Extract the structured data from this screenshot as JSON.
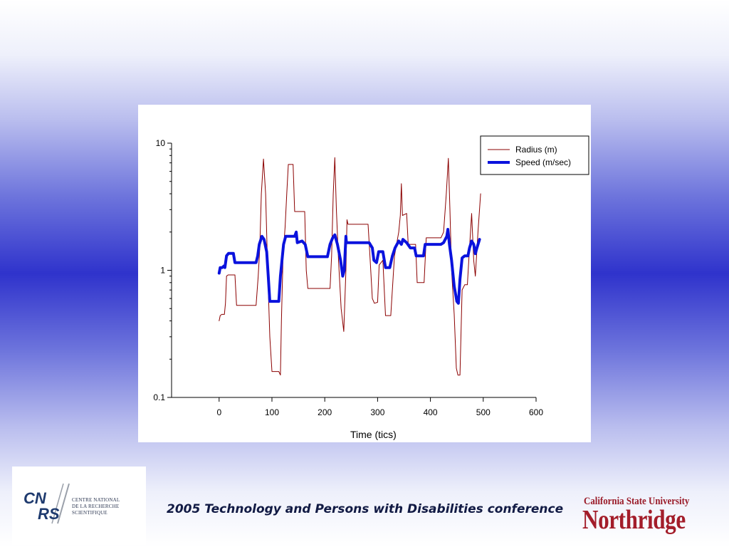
{
  "footer": {
    "conference": "2005 Technology and Persons with Disabilities conference",
    "cnrs_logo_text": [
      "CENTRE NATIONAL",
      "DE LA RECHERCHE",
      "SCIENTIFIQUE"
    ],
    "cnrs_logo_mark": "CNRS",
    "csun_logo_line1": "California State University",
    "csun_logo_line2": "Northridge"
  },
  "colors": {
    "radius": "#8b0000",
    "speed": "#0a12dd",
    "csun": "#a31d2a"
  },
  "chart_data": {
    "type": "line",
    "title": "",
    "xlabel": "Time (tics)",
    "ylabel": "",
    "xlim": [
      -90,
      600
    ],
    "ylim": [
      0.1,
      10
    ],
    "yscale": "log",
    "xticks": [
      0,
      100,
      200,
      300,
      400,
      500,
      600
    ],
    "yticks": [
      0.1,
      1,
      10
    ],
    "xtick_labels": [
      "0",
      "100",
      "200",
      "300",
      "400",
      "500",
      "600"
    ],
    "ytick_labels": [
      "0.1",
      "1",
      "10"
    ],
    "grid": false,
    "legend_position": "top-right",
    "series": [
      {
        "name": "Radius (m)",
        "color": "#8b0000",
        "line_width": 1,
        "points": [
          [
            0,
            0.4
          ],
          [
            2,
            0.44
          ],
          [
            5,
            0.45
          ],
          [
            10,
            0.45
          ],
          [
            12,
            0.55
          ],
          [
            14,
            0.9
          ],
          [
            17,
            0.92
          ],
          [
            30,
            0.92
          ],
          [
            33,
            0.53
          ],
          [
            70,
            0.53
          ],
          [
            74,
            0.9
          ],
          [
            77,
            1.5
          ],
          [
            80,
            4
          ],
          [
            84,
            7.5
          ],
          [
            88,
            4
          ],
          [
            92,
            1
          ],
          [
            96,
            0.3
          ],
          [
            100,
            0.16
          ],
          [
            113,
            0.16
          ],
          [
            116,
            0.15
          ],
          [
            118,
            0.4
          ],
          [
            121,
            1.3
          ],
          [
            125,
            2.2
          ],
          [
            128,
            4
          ],
          [
            131,
            6.8
          ],
          [
            140,
            6.8
          ],
          [
            143,
            2.9
          ],
          [
            162,
            2.9
          ],
          [
            165,
            1
          ],
          [
            168,
            0.72
          ],
          [
            210,
            0.72
          ],
          [
            213,
            1.3
          ],
          [
            216,
            4
          ],
          [
            219,
            7.7
          ],
          [
            222,
            3
          ],
          [
            226,
            1.2
          ],
          [
            231,
            0.5
          ],
          [
            236,
            0.33
          ],
          [
            240,
            1
          ],
          [
            242,
            2.5
          ],
          [
            244,
            2.3
          ],
          [
            282,
            2.3
          ],
          [
            285,
            1.4
          ],
          [
            290,
            0.6
          ],
          [
            294,
            0.55
          ],
          [
            300,
            0.56
          ],
          [
            303,
            1.1
          ],
          [
            310,
            1.2
          ],
          [
            315,
            0.44
          ],
          [
            325,
            0.44
          ],
          [
            332,
            1.3
          ],
          [
            340,
            2
          ],
          [
            343,
            2.7
          ],
          [
            345,
            4.8
          ],
          [
            347,
            2.7
          ],
          [
            355,
            2.8
          ],
          [
            358,
            1.6
          ],
          [
            372,
            1.6
          ],
          [
            375,
            0.8
          ],
          [
            388,
            0.8
          ],
          [
            392,
            1.8
          ],
          [
            420,
            1.8
          ],
          [
            425,
            2
          ],
          [
            430,
            4
          ],
          [
            434,
            7.6
          ],
          [
            437,
            3
          ],
          [
            440,
            1
          ],
          [
            445,
            0.45
          ],
          [
            449,
            0.17
          ],
          [
            452,
            0.15
          ],
          [
            456,
            0.15
          ],
          [
            460,
            0.7
          ],
          [
            465,
            0.77
          ],
          [
            470,
            0.77
          ],
          [
            474,
            1.5
          ],
          [
            478,
            2.8
          ],
          [
            482,
            1.2
          ],
          [
            485,
            0.9
          ],
          [
            490,
            2
          ],
          [
            495,
            4
          ]
        ]
      },
      {
        "name": "Speed (m/sec)",
        "color": "#0a12dd",
        "line_width": 4,
        "points": [
          [
            0,
            0.95
          ],
          [
            2,
            1.05
          ],
          [
            6,
            1.05
          ],
          [
            9,
            1.08
          ],
          [
            11,
            1.05
          ],
          [
            14,
            1.3
          ],
          [
            18,
            1.36
          ],
          [
            27,
            1.36
          ],
          [
            30,
            1.15
          ],
          [
            70,
            1.15
          ],
          [
            73,
            1.3
          ],
          [
            76,
            1.6
          ],
          [
            81,
            1.85
          ],
          [
            85,
            1.75
          ],
          [
            90,
            1.4
          ],
          [
            93,
            0.9
          ],
          [
            96,
            0.57
          ],
          [
            113,
            0.57
          ],
          [
            116,
            0.9
          ],
          [
            122,
            1.6
          ],
          [
            126,
            1.85
          ],
          [
            143,
            1.85
          ],
          [
            146,
            2
          ],
          [
            148,
            1.65
          ],
          [
            157,
            1.7
          ],
          [
            163,
            1.6
          ],
          [
            168,
            1.28
          ],
          [
            205,
            1.28
          ],
          [
            210,
            1.6
          ],
          [
            215,
            1.8
          ],
          [
            219,
            1.9
          ],
          [
            224,
            1.6
          ],
          [
            230,
            1.2
          ],
          [
            234,
            0.9
          ],
          [
            237,
            1
          ],
          [
            240,
            1.85
          ],
          [
            241,
            1.65
          ],
          [
            284,
            1.65
          ],
          [
            290,
            1.5
          ],
          [
            293,
            1.2
          ],
          [
            298,
            1.15
          ],
          [
            302,
            1.4
          ],
          [
            310,
            1.4
          ],
          [
            315,
            1.05
          ],
          [
            323,
            1.05
          ],
          [
            328,
            1.3
          ],
          [
            333,
            1.5
          ],
          [
            340,
            1.7
          ],
          [
            345,
            1.6
          ],
          [
            348,
            1.75
          ],
          [
            355,
            1.65
          ],
          [
            362,
            1.5
          ],
          [
            370,
            1.5
          ],
          [
            373,
            1.3
          ],
          [
            387,
            1.3
          ],
          [
            390,
            1.6
          ],
          [
            420,
            1.6
          ],
          [
            425,
            1.65
          ],
          [
            431,
            1.85
          ],
          [
            433,
            2.1
          ],
          [
            436,
            1.6
          ],
          [
            440,
            1.2
          ],
          [
            445,
            0.75
          ],
          [
            450,
            0.57
          ],
          [
            453,
            0.55
          ],
          [
            456,
            0.85
          ],
          [
            460,
            1.25
          ],
          [
            465,
            1.3
          ],
          [
            471,
            1.3
          ],
          [
            474,
            1.5
          ],
          [
            478,
            1.7
          ],
          [
            482,
            1.6
          ],
          [
            485,
            1.35
          ],
          [
            488,
            1.5
          ],
          [
            493,
            1.75
          ]
        ]
      }
    ]
  }
}
